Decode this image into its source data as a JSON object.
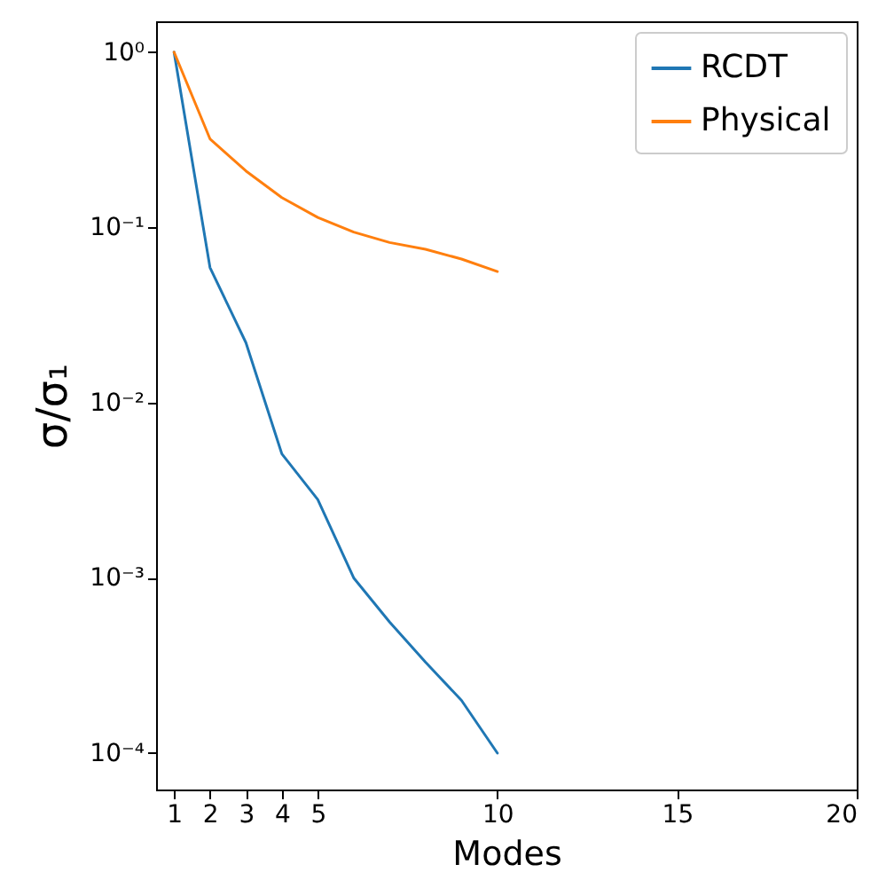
{
  "chart_data": {
    "type": "line",
    "xlabel": "Modes",
    "ylabel": "σ/σ₁",
    "x": [
      1,
      2,
      3,
      4,
      5,
      6,
      7,
      8,
      9,
      10
    ],
    "series": [
      {
        "name": "RCDT",
        "color": "#1f77b4",
        "values": [
          1,
          0.059,
          0.022,
          0.0051,
          0.0028,
          0.001,
          0.00056,
          0.00033,
          0.0002,
          0.0001
        ]
      },
      {
        "name": "Physical",
        "color": "#ff7f0e",
        "values": [
          1,
          0.32,
          0.21,
          0.148,
          0.114,
          0.094,
          0.082,
          0.075,
          0.066,
          0.056
        ]
      }
    ],
    "xlim": [
      0.5,
      20
    ],
    "xticks": [
      1,
      2,
      3,
      4,
      5,
      10,
      15,
      20
    ],
    "ylim": [
      6.2e-05,
      1.5
    ],
    "yticks": [
      {
        "value": 0.0001,
        "label": "10⁻⁴"
      },
      {
        "value": 0.001,
        "label": "10⁻³"
      },
      {
        "value": 0.01,
        "label": "10⁻²"
      },
      {
        "value": 0.1,
        "label": "10⁻¹"
      },
      {
        "value": 1,
        "label": "10⁰"
      }
    ],
    "log": "y",
    "grid": false,
    "legend": "top right",
    "marker": "none",
    "line_style": "solid"
  }
}
